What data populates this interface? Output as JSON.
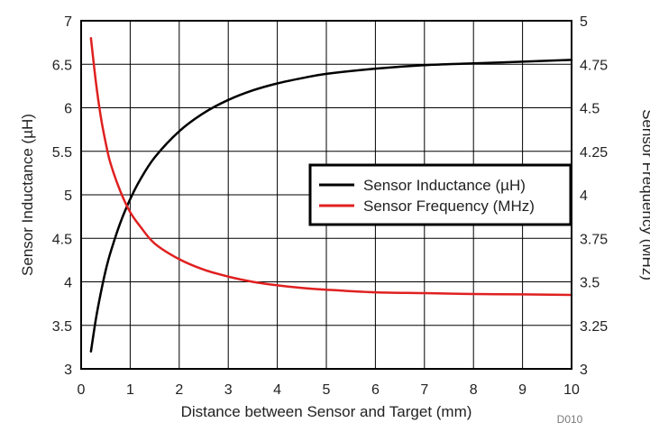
{
  "chart_data": {
    "type": "line",
    "xlabel": "Distance between Sensor and Target (mm)",
    "ylabel_left": "Sensor Inductance (µH)",
    "ylabel_right": "Sensor Frequency (MHz)",
    "xlim": [
      0,
      10
    ],
    "ylim_left": [
      3,
      7
    ],
    "ylim_right": [
      3,
      5
    ],
    "x_ticks": [
      "0",
      "1",
      "2",
      "3",
      "4",
      "5",
      "6",
      "7",
      "8",
      "9",
      "10"
    ],
    "y_left_ticks": [
      "3",
      "3.5",
      "4",
      "4.5",
      "5",
      "5.5",
      "6",
      "6.5",
      "7"
    ],
    "y_right_ticks": [
      "3",
      "3.25",
      "3.5",
      "3.75",
      "4",
      "4.25",
      "4.5",
      "4.75",
      "5"
    ],
    "grid": true,
    "legend_position": "center-right",
    "figure_code": "D010",
    "series": [
      {
        "name": "Sensor Inductance (µH)",
        "axis": "left",
        "color": "#000000",
        "x": [
          0.2,
          0.3,
          0.4,
          0.5,
          0.6,
          0.8,
          1.0,
          1.2,
          1.5,
          2.0,
          2.5,
          3.0,
          3.5,
          4.0,
          4.5,
          5.0,
          6.0,
          7.0,
          8.0,
          9.0,
          10.0
        ],
        "values": [
          3.2,
          3.57,
          3.87,
          4.13,
          4.34,
          4.68,
          4.95,
          5.17,
          5.43,
          5.73,
          5.94,
          6.09,
          6.2,
          6.28,
          6.34,
          6.39,
          6.45,
          6.49,
          6.51,
          6.53,
          6.55
        ]
      },
      {
        "name": "Sensor Frequency (MHz)",
        "axis": "right",
        "color": "#e02020",
        "x": [
          0.2,
          0.3,
          0.4,
          0.5,
          0.6,
          0.8,
          1.0,
          1.2,
          1.5,
          2.0,
          2.5,
          3.0,
          3.5,
          4.0,
          4.5,
          5.0,
          6.0,
          7.0,
          8.0,
          9.0,
          10.0
        ],
        "values": [
          4.9,
          4.65,
          4.45,
          4.3,
          4.18,
          4.02,
          3.9,
          3.82,
          3.72,
          3.63,
          3.57,
          3.53,
          3.5,
          3.48,
          3.465,
          3.455,
          3.44,
          3.435,
          3.43,
          3.428,
          3.425
        ]
      }
    ]
  }
}
